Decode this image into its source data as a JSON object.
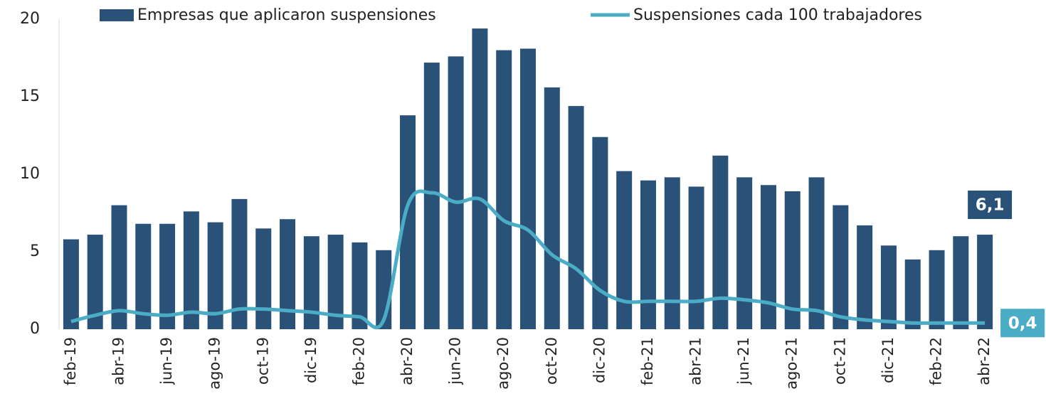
{
  "chart_data": {
    "type": "bar_line",
    "categories": [
      "feb-19",
      null,
      "abr-19",
      null,
      "jun-19",
      null,
      "ago-19",
      null,
      "oct-19",
      null,
      "dic-19",
      null,
      "feb-20",
      null,
      "abr-20",
      null,
      "jun-20",
      null,
      "ago-20",
      null,
      "oct-20",
      null,
      "dic-20",
      null,
      "feb-21",
      null,
      "abr-21",
      null,
      "jun-21",
      null,
      "ago-21",
      null,
      "oct-21",
      null,
      "dic-21",
      null,
      "feb-22",
      null,
      "abr-22"
    ],
    "series": [
      {
        "name": "Empresas que aplicaron suspensiones",
        "type": "bar",
        "color": "#2a5279",
        "values": [
          5.8,
          6.1,
          8.0,
          6.8,
          6.8,
          7.6,
          6.9,
          8.4,
          6.5,
          7.1,
          6.0,
          6.1,
          5.6,
          5.1,
          13.8,
          17.2,
          17.6,
          19.4,
          18.0,
          18.1,
          15.6,
          14.4,
          12.4,
          10.2,
          9.6,
          9.8,
          9.2,
          11.2,
          9.8,
          9.3,
          8.9,
          9.8,
          8.0,
          6.7,
          5.4,
          4.5,
          5.1,
          6.0,
          6.1
        ],
        "value_labels": [
          null,
          null,
          null,
          null,
          null,
          null,
          null,
          null,
          null,
          null,
          null,
          null,
          null,
          null,
          null,
          null,
          null,
          null,
          null,
          null,
          null,
          null,
          null,
          null,
          null,
          null,
          null,
          null,
          null,
          null,
          null,
          null,
          null,
          null,
          null,
          null,
          null,
          null,
          "6,1"
        ]
      },
      {
        "name": "Suspensiones cada 100 trabajadores",
        "type": "line",
        "color": "#4bacc6",
        "values": [
          0.5,
          0.9,
          1.2,
          1.0,
          0.9,
          1.1,
          1.0,
          1.3,
          1.3,
          1.2,
          1.1,
          0.9,
          0.8,
          0.6,
          8.0,
          8.8,
          8.2,
          8.4,
          7.0,
          6.4,
          4.8,
          3.9,
          2.5,
          1.8,
          1.8,
          1.8,
          1.8,
          2.0,
          1.9,
          1.7,
          1.3,
          1.2,
          0.8,
          0.6,
          0.5,
          0.4,
          0.4,
          0.4,
          0.4
        ],
        "value_labels": [
          null,
          null,
          null,
          null,
          null,
          null,
          null,
          null,
          null,
          null,
          null,
          null,
          null,
          null,
          null,
          null,
          null,
          null,
          null,
          null,
          null,
          null,
          null,
          null,
          null,
          null,
          null,
          null,
          null,
          null,
          null,
          null,
          null,
          null,
          null,
          null,
          null,
          null,
          "0,4"
        ]
      }
    ],
    "ylim": [
      0,
      20
    ],
    "yticks": [
      0,
      5,
      10,
      15,
      20
    ],
    "grid": false,
    "legend": "top"
  }
}
